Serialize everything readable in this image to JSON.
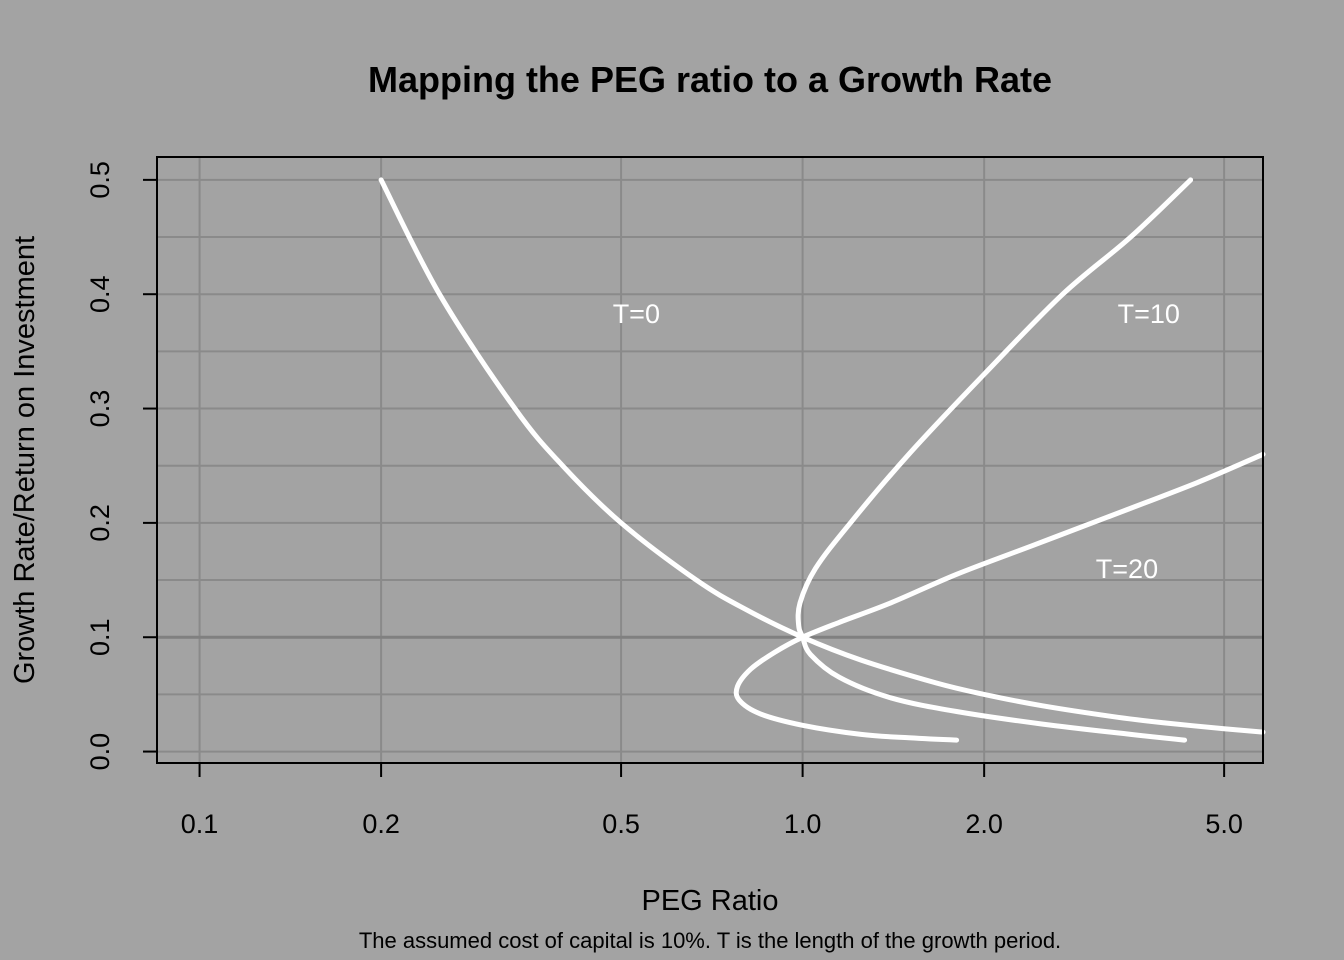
{
  "chart_data": {
    "type": "line",
    "title": "Mapping the PEG ratio to a Growth Rate",
    "xlabel": "PEG Ratio",
    "ylabel": "Growth Rate/Return on Investment",
    "note": "The assumed cost of capital is 10%.  T is the length of the growth period.",
    "x_scale": "log",
    "xlim": [
      0.085,
      5.8
    ],
    "ylim": [
      -0.01,
      0.52
    ],
    "x_ticks": [
      0.1,
      0.2,
      0.5,
      1.0,
      2.0,
      5.0
    ],
    "x_tick_labels": [
      "0.1",
      "0.2",
      "0.5",
      "1.0",
      "2.0",
      "5.0"
    ],
    "y_ticks": [
      0.0,
      0.1,
      0.2,
      0.3,
      0.4,
      0.5
    ],
    "y_tick_labels": [
      "0.0",
      "0.1",
      "0.2",
      "0.3",
      "0.4",
      "0.5"
    ],
    "grid": true,
    "reference_line": {
      "y": 0.1
    },
    "series": [
      {
        "name": "T=0",
        "color": "#ffffff",
        "points": [
          {
            "x": 0.2,
            "y": 0.5
          },
          {
            "x": 0.25,
            "y": 0.4
          },
          {
            "x": 0.3333,
            "y": 0.3
          },
          {
            "x": 0.4,
            "y": 0.25
          },
          {
            "x": 0.5,
            "y": 0.2
          },
          {
            "x": 0.6667,
            "y": 0.15
          },
          {
            "x": 0.8,
            "y": 0.125
          },
          {
            "x": 1.0,
            "y": 0.1
          },
          {
            "x": 1.25,
            "y": 0.08
          },
          {
            "x": 1.6667,
            "y": 0.06
          },
          {
            "x": 2.0,
            "y": 0.05
          },
          {
            "x": 2.5,
            "y": 0.04
          },
          {
            "x": 3.3333,
            "y": 0.03
          },
          {
            "x": 4.0,
            "y": 0.025
          },
          {
            "x": 5.0,
            "y": 0.02
          },
          {
            "x": 5.8,
            "y": 0.017
          }
        ]
      },
      {
        "name": "T=10",
        "color": "#ffffff",
        "points": [
          {
            "x": 4.4,
            "y": 0.5
          },
          {
            "x": 3.5,
            "y": 0.45
          },
          {
            "x": 2.7,
            "y": 0.4
          },
          {
            "x": 2.0,
            "y": 0.33
          },
          {
            "x": 1.5,
            "y": 0.26
          },
          {
            "x": 1.2,
            "y": 0.2
          },
          {
            "x": 1.05,
            "y": 0.16
          },
          {
            "x": 0.99,
            "y": 0.13
          },
          {
            "x": 0.985,
            "y": 0.11
          },
          {
            "x": 1.0,
            "y": 0.1
          },
          {
            "x": 1.03,
            "y": 0.085
          },
          {
            "x": 1.15,
            "y": 0.065
          },
          {
            "x": 1.4,
            "y": 0.047
          },
          {
            "x": 1.8,
            "y": 0.035
          },
          {
            "x": 2.5,
            "y": 0.024
          },
          {
            "x": 3.5,
            "y": 0.015
          },
          {
            "x": 4.3,
            "y": 0.01
          }
        ]
      },
      {
        "name": "T=20",
        "color": "#ffffff",
        "points": [
          {
            "x": 5.8,
            "y": 0.26
          },
          {
            "x": 4.5,
            "y": 0.235
          },
          {
            "x": 3.2,
            "y": 0.205
          },
          {
            "x": 2.4,
            "y": 0.18
          },
          {
            "x": 1.8,
            "y": 0.155
          },
          {
            "x": 1.4,
            "y": 0.13
          },
          {
            "x": 1.15,
            "y": 0.113
          },
          {
            "x": 1.0,
            "y": 0.1
          },
          {
            "x": 0.9,
            "y": 0.087
          },
          {
            "x": 0.82,
            "y": 0.072
          },
          {
            "x": 0.78,
            "y": 0.057
          },
          {
            "x": 0.785,
            "y": 0.045
          },
          {
            "x": 0.85,
            "y": 0.033
          },
          {
            "x": 1.0,
            "y": 0.023
          },
          {
            "x": 1.25,
            "y": 0.015
          },
          {
            "x": 1.5,
            "y": 0.012
          },
          {
            "x": 1.8,
            "y": 0.01
          }
        ]
      }
    ],
    "annotations": [
      {
        "text": "T=0",
        "x": 0.53,
        "y": 0.375
      },
      {
        "text": "T=10",
        "x": 3.75,
        "y": 0.375
      },
      {
        "text": "T=20",
        "x": 3.45,
        "y": 0.152
      }
    ]
  }
}
